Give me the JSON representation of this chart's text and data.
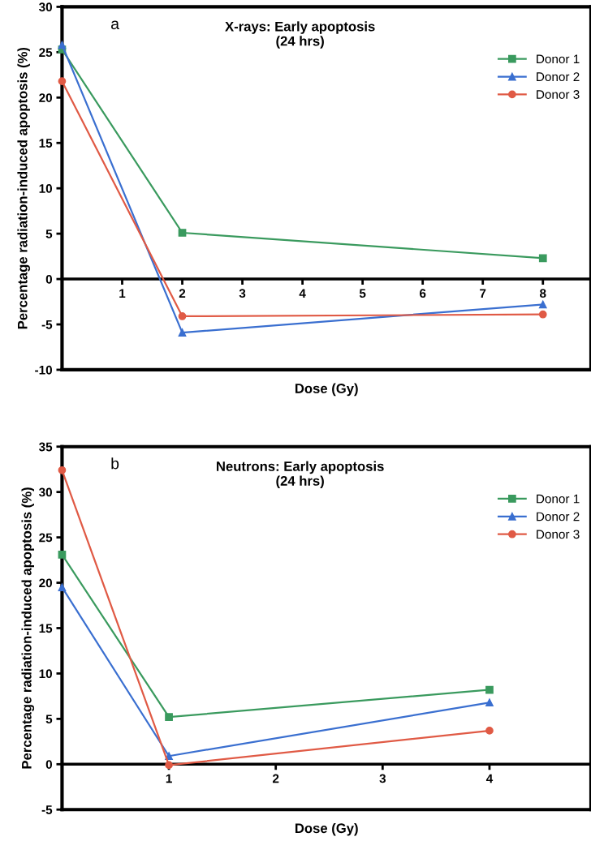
{
  "chart_data": [
    {
      "type": "line",
      "title": "X-rays: Early apoptosis\n(24 hrs)",
      "xlabel": "Dose (Gy)",
      "ylabel": "Percentage radiation-induced apoptosis (%)",
      "annotations": [
        "a"
      ],
      "x": [
        0,
        2,
        8
      ],
      "xlim": [
        0,
        8.8
      ],
      "xticks": [
        1,
        2,
        3,
        4,
        5,
        6,
        7,
        8
      ],
      "ylim": [
        -10,
        30
      ],
      "yticks": [
        -10,
        -5,
        0,
        5,
        10,
        15,
        20,
        25,
        30
      ],
      "grid": false,
      "legend": "top right",
      "series": [
        {
          "name": "Donor 1",
          "color": "#3a9a5e",
          "marker": "square",
          "values": [
            25.3,
            5.1,
            2.3
          ]
        },
        {
          "name": "Donor 2",
          "color": "#3a6fd0",
          "marker": "triangle",
          "values": [
            25.8,
            -5.9,
            -2.8
          ]
        },
        {
          "name": "Donor 3",
          "color": "#e05a45",
          "marker": "circle",
          "values": [
            21.8,
            -4.1,
            -3.9
          ]
        }
      ]
    },
    {
      "type": "line",
      "title": "Neutrons: Early apoptosis\n(24 hrs)",
      "xlabel": "Dose (Gy)",
      "ylabel": "Percentage radiation-induced apoptosis (%)",
      "annotations": [
        "b"
      ],
      "x": [
        0,
        1,
        4
      ],
      "xlim": [
        0,
        4.95
      ],
      "xticks": [
        1,
        2,
        3,
        4
      ],
      "ylim": [
        -5,
        35
      ],
      "yticks": [
        -5,
        0,
        5,
        10,
        15,
        20,
        25,
        30,
        35
      ],
      "grid": false,
      "legend": "top right",
      "series": [
        {
          "name": "Donor 1",
          "color": "#3a9a5e",
          "marker": "square",
          "values": [
            23.1,
            5.2,
            8.2
          ]
        },
        {
          "name": "Donor 2",
          "color": "#3a6fd0",
          "marker": "triangle",
          "values": [
            19.5,
            0.9,
            6.8
          ]
        },
        {
          "name": "Donor 3",
          "color": "#e05a45",
          "marker": "circle",
          "values": [
            32.4,
            -0.1,
            3.7
          ]
        }
      ]
    }
  ]
}
